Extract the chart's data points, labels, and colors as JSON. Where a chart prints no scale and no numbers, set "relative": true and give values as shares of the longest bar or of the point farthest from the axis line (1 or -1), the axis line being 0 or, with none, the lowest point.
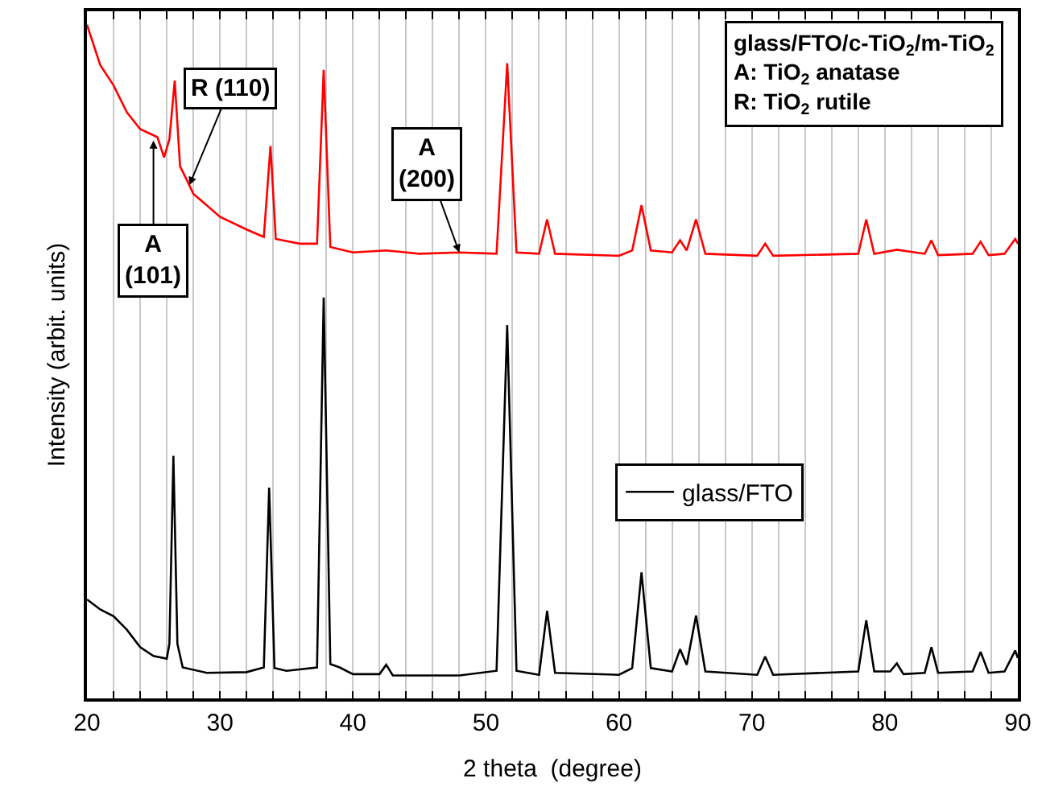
{
  "chart_data": {
    "type": "line",
    "relative": true,
    "xlabel": "2 theta  (degree)",
    "ylabel": "Intensity (arbit. units)",
    "xlim": [
      20,
      90
    ],
    "xticks": [
      20,
      {
        "value": 22,
        "label": null
      },
      {
        "value": 24,
        "label": null
      },
      {
        "value": 26,
        "label": null
      },
      {
        "value": 28,
        "label": null
      },
      30,
      {
        "value": 32,
        "label": null
      },
      {
        "value": 34,
        "label": null
      },
      {
        "value": 36,
        "label": null
      },
      {
        "value": 38,
        "label": null
      },
      40,
      {
        "value": 42,
        "label": null
      },
      {
        "value": 44,
        "label": null
      },
      {
        "value": 46,
        "label": null
      },
      {
        "value": 48,
        "label": null
      },
      50,
      {
        "value": 52,
        "label": null
      },
      {
        "value": 54,
        "label": null
      },
      {
        "value": 56,
        "label": null
      },
      {
        "value": 58,
        "label": null
      },
      60,
      {
        "value": 62,
        "label": null
      },
      {
        "value": 64,
        "label": null
      },
      {
        "value": 66,
        "label": null
      },
      {
        "value": 68,
        "label": null
      },
      70,
      {
        "value": 72,
        "label": null
      },
      {
        "value": 74,
        "label": null
      },
      {
        "value": 76,
        "label": null
      },
      {
        "value": 78,
        "label": null
      },
      80,
      {
        "value": 82,
        "label": null
      },
      {
        "value": 84,
        "label": null
      },
      {
        "value": 86,
        "label": null
      },
      {
        "value": 88,
        "label": null
      },
      90
    ],
    "grid": "x",
    "legend": "right",
    "marker": "none",
    "line_style": "solid",
    "series": [
      {
        "name": "glass/FTO/c-TiO$_{2}$/m-TiO$_{2}$",
        "color": "#ff0000",
        "x": [
          20,
          21,
          22,
          23,
          24,
          25.3,
          25.8,
          26.2,
          26.6,
          27.0,
          27.5,
          28,
          30,
          32,
          33.3,
          33.8,
          34.2,
          36,
          37.3,
          37.8,
          38.3,
          40,
          42.5,
          45,
          48,
          50.8,
          51.6,
          52.3,
          54,
          54.6,
          55.2,
          60,
          61.0,
          61.7,
          62.4,
          64,
          64.6,
          65.1,
          65.8,
          66.5,
          70.4,
          71.0,
          71.6,
          78,
          78.6,
          79.2,
          80.9,
          83,
          83.5,
          84,
          86.6,
          87.2,
          87.8,
          89,
          89.8,
          90
        ],
        "values": [
          1.0,
          0.94,
          0.91,
          0.87,
          0.845,
          0.833,
          0.803,
          0.83,
          0.917,
          0.79,
          0.77,
          0.749,
          0.715,
          0.696,
          0.685,
          0.82,
          0.682,
          0.675,
          0.675,
          0.933,
          0.67,
          0.662,
          0.665,
          0.66,
          0.662,
          0.66,
          0.943,
          0.662,
          0.66,
          0.711,
          0.66,
          0.657,
          0.665,
          0.732,
          0.665,
          0.662,
          0.68,
          0.665,
          0.711,
          0.66,
          0.657,
          0.675,
          0.657,
          0.66,
          0.711,
          0.66,
          0.666,
          0.66,
          0.68,
          0.658,
          0.66,
          0.678,
          0.658,
          0.66,
          0.682,
          0.675
        ]
      },
      {
        "name": "glass/FTO",
        "color": "#000000",
        "x": [
          20,
          21,
          22,
          23,
          24,
          25,
          26,
          26.2,
          26.5,
          26.8,
          27.2,
          29,
          32,
          33.3,
          33.7,
          34.1,
          35,
          37.3,
          37.8,
          38.3,
          39,
          40,
          42,
          42.5,
          43,
          48,
          50.8,
          51.6,
          52.3,
          54,
          54.6,
          55.2,
          60,
          61.0,
          61.7,
          62.4,
          64,
          64.6,
          65.1,
          65.8,
          66.5,
          70.4,
          71.0,
          71.6,
          78,
          78.6,
          79.2,
          80.4,
          80.9,
          81.4,
          83,
          83.5,
          84,
          86.6,
          87.2,
          87.8,
          89,
          89.8,
          90
        ],
        "values": [
          0.147,
          0.132,
          0.122,
          0.102,
          0.076,
          0.063,
          0.059,
          0.081,
          0.36,
          0.081,
          0.046,
          0.038,
          0.039,
          0.046,
          0.313,
          0.045,
          0.041,
          0.046,
          0.595,
          0.051,
          0.046,
          0.036,
          0.036,
          0.05,
          0.034,
          0.034,
          0.041,
          0.554,
          0.041,
          0.035,
          0.13,
          0.038,
          0.035,
          0.045,
          0.187,
          0.045,
          0.04,
          0.073,
          0.05,
          0.123,
          0.04,
          0.035,
          0.062,
          0.035,
          0.04,
          0.116,
          0.04,
          0.04,
          0.052,
          0.036,
          0.038,
          0.076,
          0.038,
          0.04,
          0.069,
          0.038,
          0.04,
          0.071,
          0.06
        ]
      }
    ],
    "annotations": [
      {
        "text": "A\n(101)",
        "x": 25.0,
        "y": 0.828
      },
      {
        "text": "R (110)",
        "x": 27.7,
        "y": 0.762
      },
      {
        "text": "A\n(200)",
        "x": 48.0,
        "y": 0.662
      },
      "A: TiO$_{2}$ anatase",
      "R: TiO$_{2}$ rutile"
    ]
  }
}
